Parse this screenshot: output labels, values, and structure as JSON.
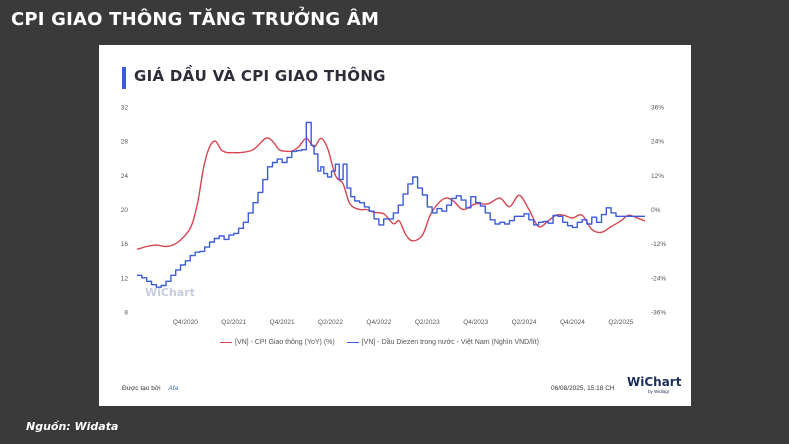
{
  "page_title": "CPI GIAO THÔNG TĂNG TRƯỞNG ÂM",
  "source_text": "Nguồn: Widata",
  "footer": {
    "created_by": "Được tạo bởi",
    "brand": "Afa",
    "datetime": "06/08/2025, 15:18 CH",
    "logo": "WiChart",
    "logo_sub": "by Widiagr"
  },
  "watermark": "WiChart",
  "colors": {
    "cpi": "#d64550",
    "diesel": "#3b5bdb",
    "title_accent": "#3b5bdb"
  },
  "chart_data": {
    "type": "line",
    "title": "GIÁ DẦU VÀ CPI GIAO THÔNG",
    "x_ticks": [
      "Q4/2020",
      "Q2/2021",
      "Q4/2021",
      "Q2/2022",
      "Q4/2022",
      "Q2/2023",
      "Q4/2023",
      "Q2/2024",
      "Q4/2024",
      "Q2/2025"
    ],
    "x_range": [
      2020.25,
      2025.5
    ],
    "y_left": {
      "ticks": [
        "8",
        "12",
        "16",
        "20",
        "24",
        "28",
        "32"
      ],
      "range": [
        8,
        32
      ]
    },
    "y_right": {
      "ticks": [
        "-36%",
        "-24%",
        "-12%",
        "0%",
        "12%",
        "24%",
        "36%"
      ],
      "range": [
        -36,
        36
      ]
    },
    "legend_position": "bottom",
    "grid": false,
    "series": [
      {
        "name": "[VN] - CPI Giao thông (YoY) (%)",
        "axis": "right",
        "style": "smooth",
        "x": [
          2020.25,
          2020.35,
          2020.45,
          2020.55,
          2020.65,
          2020.75,
          2020.82,
          2020.88,
          2020.94,
          2021.0,
          2021.06,
          2021.12,
          2021.18,
          2021.24,
          2021.32,
          2021.45,
          2021.58,
          2021.65,
          2021.72,
          2021.78,
          2021.85,
          2021.92,
          2022.0,
          2022.08,
          2022.15,
          2022.22,
          2022.3,
          2022.38,
          2022.45,
          2022.55,
          2022.62,
          2022.7,
          2022.8,
          2022.9,
          2022.96,
          2023.03,
          2023.1,
          2023.2,
          2023.28,
          2023.36,
          2023.44,
          2023.52,
          2023.62,
          2023.75,
          2023.88,
          2024.0,
          2024.1,
          2024.2,
          2024.3,
          2024.4,
          2024.5,
          2024.58,
          2024.66,
          2024.75,
          2024.85,
          2024.95,
          2025.05,
          2025.15,
          2025.25,
          2025.33,
          2025.42,
          2025.5
        ],
        "values": [
          -14,
          -13,
          -12.5,
          -13,
          -12,
          -9,
          -5,
          3,
          15,
          22,
          24,
          21,
          20,
          20,
          20,
          21,
          25,
          24,
          21,
          20.5,
          20.5,
          22,
          25,
          22,
          25,
          21.5,
          12,
          9,
          2,
          0,
          0,
          -1,
          -1.5,
          -5,
          -4,
          -9,
          -11,
          -9,
          -2,
          2,
          4,
          3,
          0,
          2,
          2,
          4,
          1,
          5,
          0,
          -6,
          -4,
          -2,
          -2,
          -3,
          -2,
          -7,
          -8,
          -6,
          -4,
          -2,
          -3,
          -4
        ]
      },
      {
        "name": "[VN] - Dầu Diezen trong nước - Việt Nam (Nghìn VND/lít)",
        "axis": "left",
        "style": "step",
        "x": [
          2020.25,
          2020.3,
          2020.35,
          2020.4,
          2020.45,
          2020.5,
          2020.55,
          2020.6,
          2020.65,
          2020.7,
          2020.75,
          2020.8,
          2020.85,
          2020.9,
          2020.95,
          2021.0,
          2021.05,
          2021.1,
          2021.15,
          2021.2,
          2021.25,
          2021.3,
          2021.35,
          2021.4,
          2021.45,
          2021.5,
          2021.55,
          2021.6,
          2021.65,
          2021.7,
          2021.75,
          2021.8,
          2021.85,
          2021.9,
          2021.95,
          2022.0,
          2022.05,
          2022.08,
          2022.12,
          2022.15,
          2022.18,
          2022.22,
          2022.26,
          2022.3,
          2022.34,
          2022.38,
          2022.42,
          2022.46,
          2022.5,
          2022.55,
          2022.6,
          2022.65,
          2022.7,
          2022.75,
          2022.8,
          2022.85,
          2022.9,
          2022.95,
          2023.0,
          2023.05,
          2023.1,
          2023.15,
          2023.2,
          2023.25,
          2023.3,
          2023.35,
          2023.4,
          2023.45,
          2023.5,
          2023.55,
          2023.6,
          2023.65,
          2023.7,
          2023.75,
          2023.8,
          2023.85,
          2023.9,
          2023.95,
          2024.0,
          2024.05,
          2024.1,
          2024.15,
          2024.2,
          2024.25,
          2024.3,
          2024.35,
          2024.4,
          2024.45,
          2024.5,
          2024.55,
          2024.6,
          2024.65,
          2024.7,
          2024.75,
          2024.8,
          2024.85,
          2024.9,
          2024.95,
          2025.0,
          2025.05,
          2025.1,
          2025.15,
          2025.2,
          2025.25,
          2025.3,
          2025.35,
          2025.4,
          2025.45,
          2025.5
        ],
        "values": [
          12.3,
          12,
          11.6,
          11.2,
          10.9,
          11.1,
          11.6,
          12.3,
          12.9,
          13.5,
          14,
          14.6,
          15,
          15.1,
          15.6,
          16.2,
          16.6,
          16.9,
          16.5,
          17,
          17.2,
          17.8,
          18.5,
          19.6,
          20.8,
          22,
          23.5,
          25,
          25.5,
          25.9,
          25.5,
          26.1,
          26.8,
          26.9,
          27,
          30.2,
          27.5,
          26.5,
          24.5,
          25,
          24.2,
          23.8,
          24.5,
          25.3,
          23.5,
          25.3,
          22.5,
          21.5,
          21,
          20.8,
          20.3,
          19.8,
          18.9,
          18.2,
          18.9,
          18.9,
          19.6,
          20.5,
          21.8,
          23,
          23.8,
          22.5,
          21.7,
          20.3,
          19.6,
          20.1,
          19.8,
          20.5,
          21.3,
          21.6,
          21.1,
          20.2,
          21.5,
          20.8,
          20.4,
          19.6,
          18.8,
          18.3,
          18.5,
          18.3,
          18.7,
          19.2,
          19.2,
          19.5,
          18.8,
          18.2,
          18.5,
          18.6,
          18.4,
          19.3,
          19.2,
          18.5,
          18.1,
          17.9,
          18.5,
          18.8,
          18.3,
          19.1,
          18.5,
          19.4,
          20.2,
          19.6,
          19.2,
          19.2,
          19.2,
          19.2,
          19.2,
          19.2,
          19.2
        ]
      }
    ]
  }
}
